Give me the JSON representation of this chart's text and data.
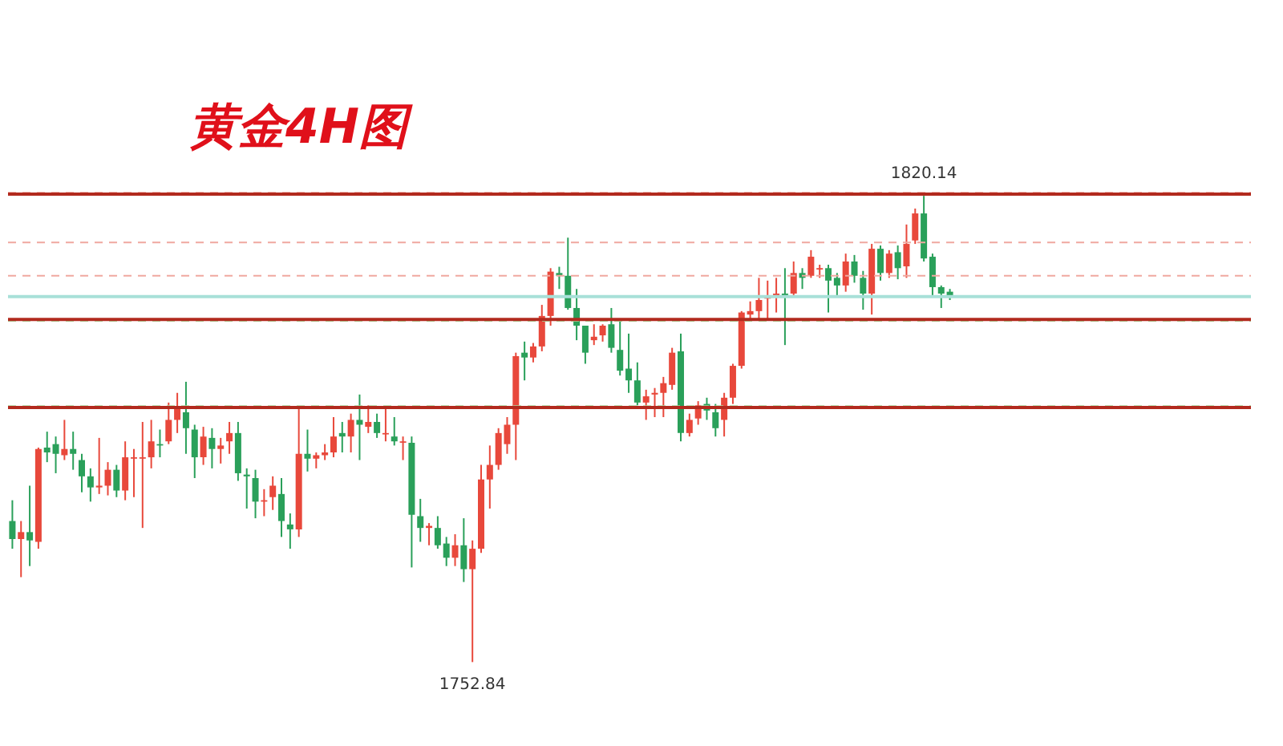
{
  "chart_data": {
    "type": "candlestick",
    "title": "黄金4H图",
    "tick_labels": false,
    "categories": [
      null,
      null,
      null,
      null,
      null,
      null,
      null,
      null,
      null,
      null,
      null,
      null,
      null,
      null,
      null,
      null,
      null,
      null,
      null,
      null,
      null,
      null,
      null,
      null,
      null,
      null,
      null,
      null,
      null,
      null,
      null,
      null,
      null,
      null,
      null,
      null,
      null,
      null,
      null,
      null,
      null,
      null,
      null,
      null,
      null,
      null,
      null,
      null,
      null,
      null,
      null,
      null,
      null,
      null,
      null,
      null,
      null,
      null,
      null,
      null,
      null,
      null,
      null,
      null,
      null,
      null,
      null,
      null,
      null,
      null,
      null,
      null,
      null,
      null,
      null,
      null,
      null,
      null,
      null,
      null,
      null,
      null,
      null,
      null,
      null,
      null,
      null,
      null,
      null,
      null,
      null,
      null,
      null,
      null,
      null,
      null,
      null,
      null,
      null,
      null,
      null,
      null,
      null,
      null,
      null,
      null,
      null,
      null,
      null
    ],
    "ohlc": [
      [
        1773.2,
        1776.2,
        1769.2,
        1770.6
      ],
      [
        1770.6,
        1773.2,
        1765.1,
        1771.6
      ],
      [
        1771.6,
        1778.3,
        1766.7,
        1770.4
      ],
      [
        1770.2,
        1783.8,
        1769.2,
        1783.6
      ],
      [
        1783.8,
        1786.1,
        1781.7,
        1783.1
      ],
      [
        1784.3,
        1785.4,
        1780.1,
        1782.9
      ],
      [
        1782.7,
        1787.8,
        1782.0,
        1783.6
      ],
      [
        1783.6,
        1786.1,
        1780.6,
        1782.9
      ],
      [
        1782.0,
        1782.9,
        1777.35,
        1779.65
      ],
      [
        1779.65,
        1780.8,
        1776.0,
        1778.05
      ],
      [
        1778.05,
        1785.2,
        1777.1,
        1778.3
      ],
      [
        1778.3,
        1781.7,
        1776.9,
        1780.6
      ],
      [
        1780.6,
        1781.3,
        1776.65,
        1777.6
      ],
      [
        1777.6,
        1784.7,
        1776.2,
        1782.4
      ],
      [
        1782.2,
        1783.6,
        1776.65,
        1782.4
      ],
      [
        1782.2,
        1787.5,
        1772.2,
        1782.4
      ],
      [
        1782.4,
        1787.8,
        1780.8,
        1784.7
      ],
      [
        1784.3,
        1786.4,
        1782.4,
        1784.1
      ],
      [
        1784.7,
        1790.3,
        1784.3,
        1787.8
      ],
      [
        1787.8,
        1791.7,
        1785.9,
        1789.4
      ],
      [
        1788.9,
        1793.3,
        1782.9,
        1786.6
      ],
      [
        1786.4,
        1787.1,
        1779.4,
        1782.4
      ],
      [
        1782.4,
        1786.8,
        1781.3,
        1785.4
      ],
      [
        1785.2,
        1786.6,
        1780.8,
        1783.6
      ],
      [
        1783.6,
        1785.2,
        1781.5,
        1784.1
      ],
      [
        1784.7,
        1787.5,
        1782.9,
        1785.9
      ],
      [
        1785.9,
        1787.5,
        1779.0,
        1780.1
      ],
      [
        1779.9,
        1780.8,
        1775.0,
        1779.65
      ],
      [
        1779.4,
        1780.6,
        1773.6,
        1776.0
      ],
      [
        1776.0,
        1777.8,
        1773.9,
        1776.2
      ],
      [
        1776.65,
        1779.65,
        1774.8,
        1778.3
      ],
      [
        1777.1,
        1779.4,
        1770.9,
        1773.2
      ],
      [
        1772.7,
        1774.3,
        1769.2,
        1772.0
      ],
      [
        1772.0,
        1789.4,
        1770.9,
        1782.9
      ],
      [
        1782.9,
        1786.4,
        1780.35,
        1782.2
      ],
      [
        1782.2,
        1783.1,
        1780.8,
        1782.7
      ],
      [
        1782.7,
        1784.3,
        1782.0,
        1783.1
      ],
      [
        1783.1,
        1788.2,
        1782.4,
        1785.4
      ],
      [
        1785.9,
        1787.5,
        1783.1,
        1785.4
      ],
      [
        1785.4,
        1788.7,
        1783.1,
        1787.8
      ],
      [
        1787.8,
        1791.46,
        1782.0,
        1787.1
      ],
      [
        1786.8,
        1789.9,
        1785.9,
        1787.5
      ],
      [
        1787.5,
        1788.7,
        1785.2,
        1785.9
      ],
      [
        1785.7,
        1789.6,
        1784.7,
        1785.9
      ],
      [
        1785.4,
        1788.2,
        1784.1,
        1784.7
      ],
      [
        1784.5,
        1785.4,
        1782.0,
        1784.7
      ],
      [
        1784.5,
        1785.4,
        1766.5,
        1774.1
      ],
      [
        1773.9,
        1776.4,
        1770.2,
        1772.2
      ],
      [
        1772.2,
        1772.9,
        1769.7,
        1772.5
      ],
      [
        1772.2,
        1773.9,
        1769.2,
        1769.7
      ],
      [
        1769.95,
        1770.9,
        1766.7,
        1767.9
      ],
      [
        1767.9,
        1771.3,
        1766.7,
        1769.7
      ],
      [
        1769.7,
        1773.6,
        1764.4,
        1766.25
      ],
      [
        1766.25,
        1770.4,
        1752.84,
        1769.2
      ],
      [
        1769.2,
        1781.3,
        1768.6,
        1779.2
      ],
      [
        1779.2,
        1784.1,
        1775.0,
        1781.3
      ],
      [
        1781.3,
        1786.6,
        1780.6,
        1785.9
      ],
      [
        1784.3,
        1788.2,
        1782.9,
        1787.1
      ],
      [
        1787.1,
        1797.5,
        1782.0,
        1797.0
      ],
      [
        1797.5,
        1799.1,
        1793.5,
        1796.8
      ],
      [
        1796.8,
        1798.9,
        1796.1,
        1798.4
      ],
      [
        1798.4,
        1804.4,
        1797.7,
        1802.8
      ],
      [
        1802.8,
        1809.7,
        1801.4,
        1809.2
      ],
      [
        1809.0,
        1809.9,
        1806.7,
        1808.6
      ],
      [
        1808.6,
        1814.1,
        1803.7,
        1803.95
      ],
      [
        1803.95,
        1806.7,
        1799.3,
        1801.4
      ],
      [
        1801.4,
        1801.4,
        1795.9,
        1797.5
      ],
      [
        1799.3,
        1801.6,
        1798.6,
        1799.8
      ],
      [
        1800.0,
        1801.6,
        1799.1,
        1801.4
      ],
      [
        1801.6,
        1803.95,
        1797.5,
        1798.2
      ],
      [
        1797.9,
        1802.1,
        1794.2,
        1794.9
      ],
      [
        1795.2,
        1800.25,
        1791.7,
        1793.5
      ],
      [
        1793.5,
        1796.1,
        1789.9,
        1790.3
      ],
      [
        1790.3,
        1792.15,
        1787.8,
        1791.2
      ],
      [
        1791.46,
        1792.4,
        1788.2,
        1791.7
      ],
      [
        1791.7,
        1794.0,
        1788.2,
        1793.1
      ],
      [
        1792.85,
        1798.2,
        1792.15,
        1797.5
      ],
      [
        1797.7,
        1800.25,
        1784.7,
        1785.9
      ],
      [
        1785.9,
        1788.7,
        1785.4,
        1787.8
      ],
      [
        1788.0,
        1790.5,
        1787.1,
        1789.9
      ],
      [
        1790.1,
        1791.0,
        1787.8,
        1789.15
      ],
      [
        1788.9,
        1790.1,
        1785.4,
        1786.6
      ],
      [
        1787.8,
        1791.7,
        1785.4,
        1791.0
      ],
      [
        1791.0,
        1795.9,
        1790.1,
        1795.6
      ],
      [
        1795.6,
        1803.5,
        1795.2,
        1803.3
      ],
      [
        1803.0,
        1804.9,
        1802.1,
        1803.5
      ],
      [
        1803.5,
        1808.3,
        1802.1,
        1805.1
      ],
      [
        1805.3,
        1807.9,
        1802.1,
        1805.8
      ],
      [
        1805.6,
        1808.3,
        1803.3,
        1806.03
      ],
      [
        1806.03,
        1809.7,
        1798.6,
        1805.8
      ],
      [
        1806.03,
        1810.66,
        1805.6,
        1809.0
      ],
      [
        1809.0,
        1809.7,
        1806.7,
        1808.3
      ],
      [
        1808.6,
        1812.3,
        1808.3,
        1811.35
      ],
      [
        1809.5,
        1810.2,
        1808.3,
        1809.7
      ],
      [
        1809.7,
        1810.2,
        1803.3,
        1807.9
      ],
      [
        1808.3,
        1809.0,
        1805.6,
        1807.2
      ],
      [
        1807.2,
        1811.8,
        1806.3,
        1810.66
      ],
      [
        1810.66,
        1811.6,
        1807.6,
        1808.6
      ],
      [
        1808.3,
        1809.3,
        1803.7,
        1806.03
      ],
      [
        1806.03,
        1813.2,
        1803.0,
        1812.5
      ],
      [
        1812.5,
        1812.97,
        1807.9,
        1809.0
      ],
      [
        1809.0,
        1812.3,
        1808.3,
        1811.8
      ],
      [
        1812.0,
        1812.97,
        1808.1,
        1809.7
      ],
      [
        1809.96,
        1816.0,
        1808.3,
        1813.2
      ],
      [
        1813.7,
        1818.3,
        1813.2,
        1817.6
      ],
      [
        1817.6,
        1820.14,
        1810.66,
        1811.1
      ],
      [
        1811.35,
        1811.8,
        1805.6,
        1806.96
      ],
      [
        1806.96,
        1807.2,
        1803.95,
        1806.03
      ],
      [
        1806.3,
        1806.7,
        1805.1,
        1805.8
      ]
    ],
    "colors": [
      "#2aa05a",
      "#e8483b",
      "#2aa05a",
      "#e8483b",
      "#2aa05a",
      "#2aa05a",
      "#e8483b",
      "#2aa05a",
      "#2aa05a",
      "#2aa05a",
      "#e8483b",
      "#e8483b",
      "#2aa05a",
      "#e8483b",
      "#e8483b",
      "#e8483b",
      "#e8483b",
      "#2aa05a",
      "#e8483b",
      "#e8483b",
      "#2aa05a",
      "#2aa05a",
      "#e8483b",
      "#2aa05a",
      "#e8483b",
      "#e8483b",
      "#2aa05a",
      "#2aa05a",
      "#2aa05a",
      "#e8483b",
      "#e8483b",
      "#2aa05a",
      "#2aa05a",
      "#e8483b",
      "#2aa05a",
      "#e8483b",
      "#e8483b",
      "#e8483b",
      "#2aa05a",
      "#e8483b",
      "#2aa05a",
      "#e8483b",
      "#2aa05a",
      "#e8483b",
      "#2aa05a",
      "#e8483b",
      "#2aa05a",
      "#2aa05a",
      "#e8483b",
      "#2aa05a",
      "#2aa05a",
      "#e8483b",
      "#2aa05a",
      "#e8483b",
      "#e8483b",
      "#e8483b",
      "#e8483b",
      "#e8483b",
      "#e8483b",
      "#2aa05a",
      "#e8483b",
      "#e8483b",
      "#e8483b",
      "#2aa05a",
      "#2aa05a",
      "#2aa05a",
      "#2aa05a",
      "#e8483b",
      "#e8483b",
      "#2aa05a",
      "#2aa05a",
      "#2aa05a",
      "#2aa05a",
      "#e8483b",
      "#e8483b",
      "#e8483b",
      "#e8483b",
      "#2aa05a",
      "#e8483b",
      "#e8483b",
      "#2aa05a",
      "#2aa05a",
      "#e8483b",
      "#e8483b",
      "#e8483b",
      "#e8483b",
      "#e8483b",
      "#e8483b",
      "#e8483b",
      "#2aa05a",
      "#e8483b",
      "#2aa05a",
      "#e8483b",
      "#e8483b",
      "#2aa05a",
      "#2aa05a",
      "#e8483b",
      "#2aa05a",
      "#2aa05a",
      "#e8483b",
      "#2aa05a",
      "#e8483b",
      "#2aa05a",
      "#e8483b",
      "#e8483b",
      "#2aa05a",
      "#2aa05a",
      "#2aa05a",
      "#2aa05a"
    ],
    "ref_lines": [
      {
        "axis": "y",
        "value": 1820.6,
        "color": "#f0a8a0",
        "line_style": "dashed"
      },
      {
        "axis": "y",
        "value": 1820.4,
        "color": "#b22a1e",
        "line_style": "solid"
      },
      {
        "axis": "y",
        "value": 1813.4,
        "color": "#f0a8a0",
        "line_style": "dashed"
      },
      {
        "axis": "y",
        "value": 1808.6,
        "color": "#f0a8a0",
        "line_style": "dashed"
      },
      {
        "axis": "y",
        "value": 1805.6,
        "color": "#a8e0d8",
        "line_style": "solid"
      },
      {
        "axis": "y",
        "value": 1802.1,
        "color": "#a8dca0",
        "line_style": "dashed"
      },
      {
        "axis": "y",
        "value": 1802.3,
        "color": "#b22a1e",
        "line_style": "solid"
      },
      {
        "axis": "y",
        "value": 1789.8,
        "color": "#a8dca0",
        "line_style": "dashed"
      },
      {
        "axis": "y",
        "value": 1789.6,
        "color": "#b22a1e",
        "line_style": "solid"
      }
    ],
    "annotations": [
      {
        "text": "1820.14",
        "y": 1820.14
      },
      {
        "text": "1752.84",
        "y": 1752.84
      }
    ]
  }
}
